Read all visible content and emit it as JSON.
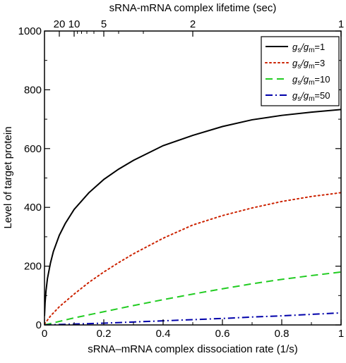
{
  "chart_data": {
    "type": "line",
    "xlabel": "sRNA–mRNA complex dissociation rate (1/s)",
    "ylabel": "Level of target protein",
    "x2label": "sRNA-mRNA complex lifetime (sec)",
    "xlim": [
      0,
      1
    ],
    "ylim": [
      0,
      1000
    ],
    "x_ticks": [
      0,
      0.2,
      0.4,
      0.6,
      0.8,
      1
    ],
    "x_tick_labels": [
      "0",
      "0.2",
      "0.4",
      "0.6",
      "0.8",
      "1"
    ],
    "y_ticks": [
      0,
      200,
      400,
      600,
      800,
      1000
    ],
    "y_tick_labels": [
      "0",
      "200",
      "400",
      "600",
      "800",
      "1000"
    ],
    "top_ticks": [
      {
        "lifetime": 20,
        "label": "20"
      },
      {
        "lifetime": 10,
        "label": "10"
      },
      {
        "lifetime": 5,
        "label": "5"
      },
      {
        "lifetime": 2,
        "label": "2"
      },
      {
        "lifetime": 1,
        "label": "1"
      }
    ],
    "grid": false,
    "legend_position": "top-right",
    "series": [
      {
        "name_prefix": "g",
        "name_sub1": "s",
        "name_slash": "/g",
        "name_sub2": "m",
        "name_suffix": "=1",
        "style": "solid",
        "color": "#000000",
        "x": [
          0,
          0.002,
          0.005,
          0.01,
          0.02,
          0.03,
          0.05,
          0.07,
          0.1,
          0.15,
          0.2,
          0.25,
          0.3,
          0.4,
          0.5,
          0.6,
          0.7,
          0.8,
          0.9,
          1.0
        ],
        "y": [
          30,
          75,
          115,
          158,
          210,
          250,
          305,
          345,
          393,
          450,
          495,
          530,
          560,
          610,
          645,
          675,
          698,
          713,
          724,
          733
        ]
      },
      {
        "name_prefix": "g",
        "name_sub1": "s",
        "name_slash": "/g",
        "name_sub2": "m",
        "name_suffix": "=3",
        "style": "dotted",
        "color": "#cc2200",
        "x": [
          0,
          0.02,
          0.05,
          0.1,
          0.15,
          0.2,
          0.25,
          0.3,
          0.4,
          0.5,
          0.6,
          0.7,
          0.8,
          0.9,
          1.0
        ],
        "y": [
          3,
          30,
          62,
          105,
          145,
          180,
          212,
          242,
          295,
          340,
          372,
          398,
          420,
          437,
          450
        ]
      },
      {
        "name_prefix": "g",
        "name_sub1": "s",
        "name_slash": "/g",
        "name_sub2": "m",
        "name_suffix": "=10",
        "style": "dashed",
        "color": "#22cc22",
        "x": [
          0,
          0.05,
          0.1,
          0.2,
          0.3,
          0.4,
          0.5,
          0.6,
          0.7,
          0.8,
          0.9,
          1.0
        ],
        "y": [
          0,
          12,
          24,
          45,
          66,
          86,
          105,
          123,
          140,
          155,
          168,
          180
        ]
      },
      {
        "name_prefix": "g",
        "name_sub1": "s",
        "name_slash": "/g",
        "name_sub2": "m",
        "name_suffix": "=50",
        "style": "dashdot",
        "color": "#0000aa",
        "x": [
          0,
          0.1,
          0.2,
          0.3,
          0.4,
          0.5,
          0.6,
          0.7,
          0.8,
          0.9,
          1.0
        ],
        "y": [
          0,
          3,
          6,
          10,
          14,
          18,
          22,
          27,
          31,
          36,
          41
        ]
      }
    ]
  }
}
